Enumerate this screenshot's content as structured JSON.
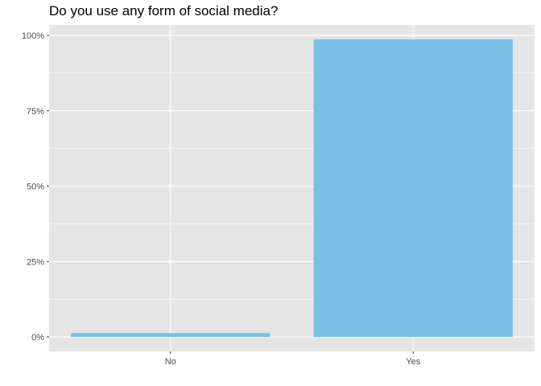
{
  "chart_data": {
    "type": "bar",
    "title": "Do you use any form of social media?",
    "categories": [
      "No",
      "Yes"
    ],
    "values": [
      1.3,
      98.7
    ],
    "ylim": [
      0,
      100
    ],
    "yticks": [
      0,
      25,
      50,
      75,
      100
    ],
    "ytick_labels": [
      "0%",
      "25%",
      "50%",
      "75%",
      "100%"
    ],
    "xlabel": "",
    "ylabel": "",
    "grid": true,
    "bar_color": "#78c1e5",
    "panel_color": "#e5e5e5",
    "gridline_color": "#ffffff"
  }
}
